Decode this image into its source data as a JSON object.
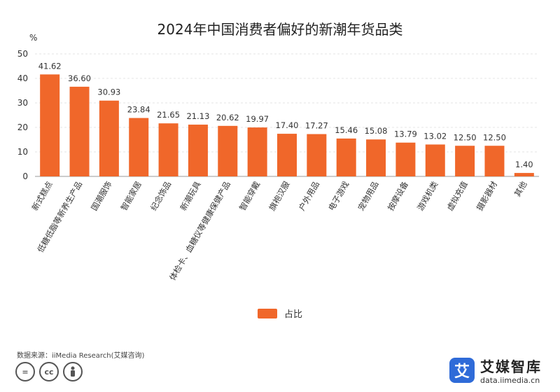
{
  "colors": {
    "bar": "#f0672a",
    "axis": "#999999",
    "grid": "#e6e6e6",
    "brand": "#2f6bd8"
  },
  "chart_data": {
    "type": "bar",
    "title": "2024年中国消费者偏好的新潮年货品类",
    "ylabel": "%",
    "ylim": [
      0,
      50
    ],
    "yticks": [
      0,
      10,
      20,
      30,
      40,
      50
    ],
    "categories": [
      "新式糕点",
      "低糖低脂等新养生产品",
      "国潮服饰",
      "智能家居",
      "纪念饰品",
      "新潮玩具",
      "体检卡、血糖仪等健康保健产品",
      "智能穿戴",
      "旗袍汉服",
      "户外用品",
      "电子游戏",
      "宠物用品",
      "按摩设备",
      "游戏机类",
      "虚拟充值",
      "摄影器材",
      "其他"
    ],
    "values": [
      41.62,
      36.6,
      30.93,
      23.84,
      21.65,
      21.13,
      20.62,
      19.97,
      17.4,
      17.27,
      15.46,
      15.08,
      13.79,
      13.02,
      12.5,
      12.5,
      1.4
    ],
    "value_labels": [
      "41.62",
      "36.60",
      "30.93",
      "23.84",
      "21.65",
      "21.13",
      "20.62",
      "19.97",
      "17.40",
      "17.27",
      "15.46",
      "15.08",
      "13.79",
      "13.02",
      "12.50",
      "12.50",
      "1.40"
    ],
    "legend": [
      "占比"
    ]
  },
  "source": "数据来源：iiMedia Research(艾媒咨询)",
  "license_icons": [
    "equals-icon",
    "cc-icon",
    "person-icon"
  ],
  "license_texts": [
    "=",
    "cc"
  ],
  "brand": {
    "logo_char": "艾",
    "name": "艾媒智库",
    "url": "data.iimedia.cn"
  }
}
